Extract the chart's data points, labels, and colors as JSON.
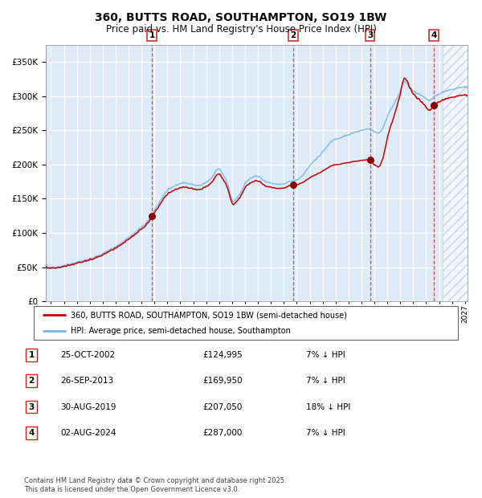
{
  "title": "360, BUTTS ROAD, SOUTHAMPTON, SO19 1BW",
  "subtitle": "Price paid vs. HM Land Registry's House Price Index (HPI)",
  "hpi_color": "#7ab8e8",
  "price_color": "#cc0000",
  "background_chart": "#ddeaf7",
  "background_fig": "#ffffff",
  "grid_color": "#ffffff",
  "ylim": [
    0,
    375000
  ],
  "yticks": [
    0,
    50000,
    100000,
    150000,
    200000,
    250000,
    300000,
    350000
  ],
  "xlim_start": 1994.6,
  "xlim_end": 2027.2,
  "sale_dates": [
    2002.82,
    2013.74,
    2019.66,
    2024.59
  ],
  "sale_prices": [
    124995,
    169950,
    207050,
    287000
  ],
  "sale_labels": [
    "1",
    "2",
    "3",
    "4"
  ],
  "legend_line1": "360, BUTTS ROAD, SOUTHAMPTON, SO19 1BW (semi-detached house)",
  "legend_line2": "HPI: Average price, semi-detached house, Southampton",
  "table_entries": [
    {
      "label": "1",
      "date": "25-OCT-2002",
      "price": "£124,995",
      "pct": "7% ↓ HPI"
    },
    {
      "label": "2",
      "date": "26-SEP-2013",
      "price": "£169,950",
      "pct": "7% ↓ HPI"
    },
    {
      "label": "3",
      "date": "30-AUG-2019",
      "price": "£207,050",
      "pct": "18% ↓ HPI"
    },
    {
      "label": "4",
      "date": "02-AUG-2024",
      "price": "£287,000",
      "pct": "7% ↓ HPI"
    }
  ],
  "footnote": "Contains HM Land Registry data © Crown copyright and database right 2025.\nThis data is licensed under the Open Government Licence v3.0.",
  "hatch_region_start": 2025.3,
  "hpi_anchors": [
    [
      1995.0,
      50000
    ],
    [
      1996.0,
      52000
    ],
    [
      1997.0,
      57000
    ],
    [
      1998.0,
      62000
    ],
    [
      1999.0,
      70000
    ],
    [
      2000.0,
      80000
    ],
    [
      2001.0,
      93000
    ],
    [
      2002.0,
      108000
    ],
    [
      2002.5,
      118000
    ],
    [
      2003.0,
      133000
    ],
    [
      2003.5,
      148000
    ],
    [
      2004.0,
      162000
    ],
    [
      2004.5,
      168000
    ],
    [
      2005.0,
      172000
    ],
    [
      2005.5,
      173000
    ],
    [
      2006.0,
      170000
    ],
    [
      2006.5,
      169000
    ],
    [
      2007.0,
      174000
    ],
    [
      2007.5,
      183000
    ],
    [
      2008.0,
      193000
    ],
    [
      2008.3,
      185000
    ],
    [
      2008.7,
      168000
    ],
    [
      2009.0,
      148000
    ],
    [
      2009.3,
      150000
    ],
    [
      2009.7,
      160000
    ],
    [
      2010.0,
      172000
    ],
    [
      2010.5,
      180000
    ],
    [
      2011.0,
      183000
    ],
    [
      2011.5,
      176000
    ],
    [
      2012.0,
      173000
    ],
    [
      2012.5,
      171000
    ],
    [
      2013.0,
      172000
    ],
    [
      2013.5,
      175000
    ],
    [
      2014.0,
      178000
    ],
    [
      2014.5,
      185000
    ],
    [
      2015.0,
      198000
    ],
    [
      2015.5,
      208000
    ],
    [
      2016.0,
      218000
    ],
    [
      2016.5,
      230000
    ],
    [
      2017.0,
      237000
    ],
    [
      2017.5,
      240000
    ],
    [
      2018.0,
      244000
    ],
    [
      2018.5,
      247000
    ],
    [
      2019.0,
      250000
    ],
    [
      2019.5,
      252000
    ],
    [
      2019.8,
      250000
    ],
    [
      2020.0,
      248000
    ],
    [
      2020.3,
      247000
    ],
    [
      2020.7,
      255000
    ],
    [
      2021.0,
      270000
    ],
    [
      2021.5,
      288000
    ],
    [
      2022.0,
      308000
    ],
    [
      2022.3,
      320000
    ],
    [
      2022.6,
      316000
    ],
    [
      2023.0,
      308000
    ],
    [
      2023.3,
      304000
    ],
    [
      2023.7,
      300000
    ],
    [
      2024.0,
      296000
    ],
    [
      2024.3,
      294000
    ],
    [
      2024.6,
      298000
    ],
    [
      2025.0,
      303000
    ],
    [
      2025.5,
      308000
    ],
    [
      2026.0,
      310000
    ],
    [
      2026.5,
      312000
    ],
    [
      2027.0,
      313000
    ]
  ]
}
